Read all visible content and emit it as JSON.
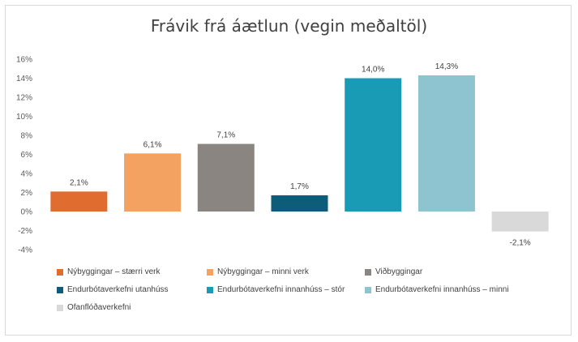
{
  "chart_data": {
    "type": "bar",
    "title": "Frávik frá áætlun (vegin meðaltöl)",
    "xlabel": "",
    "ylabel": "",
    "ylim": [
      -4,
      16
    ],
    "yticks": [
      16,
      14,
      12,
      10,
      8,
      6,
      4,
      2,
      0,
      -2,
      -4
    ],
    "ytick_labels": [
      "16%",
      "14%",
      "12%",
      "10%",
      "8%",
      "6%",
      "4%",
      "2%",
      "0%",
      "-2%",
      "-4%"
    ],
    "grid": false,
    "legend_position": "bottom",
    "categories": [
      "Nýbyggingar – stærri verk",
      "Nýbyggingar – minni verk",
      "Viðbyggingar",
      "Endurbótaverkefni utanhúss",
      "Endurbótaverkefni innanhúss – stór",
      "Endurbótaverkefni innanhúss – minni",
      "Ofanflóðaverkefni"
    ],
    "values": [
      2.1,
      6.1,
      7.1,
      1.7,
      14.0,
      14.3,
      -2.1
    ],
    "data_labels": [
      "2,1%",
      "6,1%",
      "7,1%",
      "1,7%",
      "14,0%",
      "14,3%",
      "-2,1%"
    ],
    "colors": [
      "#e06c2f",
      "#f4a261",
      "#8a8580",
      "#0d5c7a",
      "#1a9bb5",
      "#8ec4cf",
      "#d9d9d9"
    ]
  }
}
